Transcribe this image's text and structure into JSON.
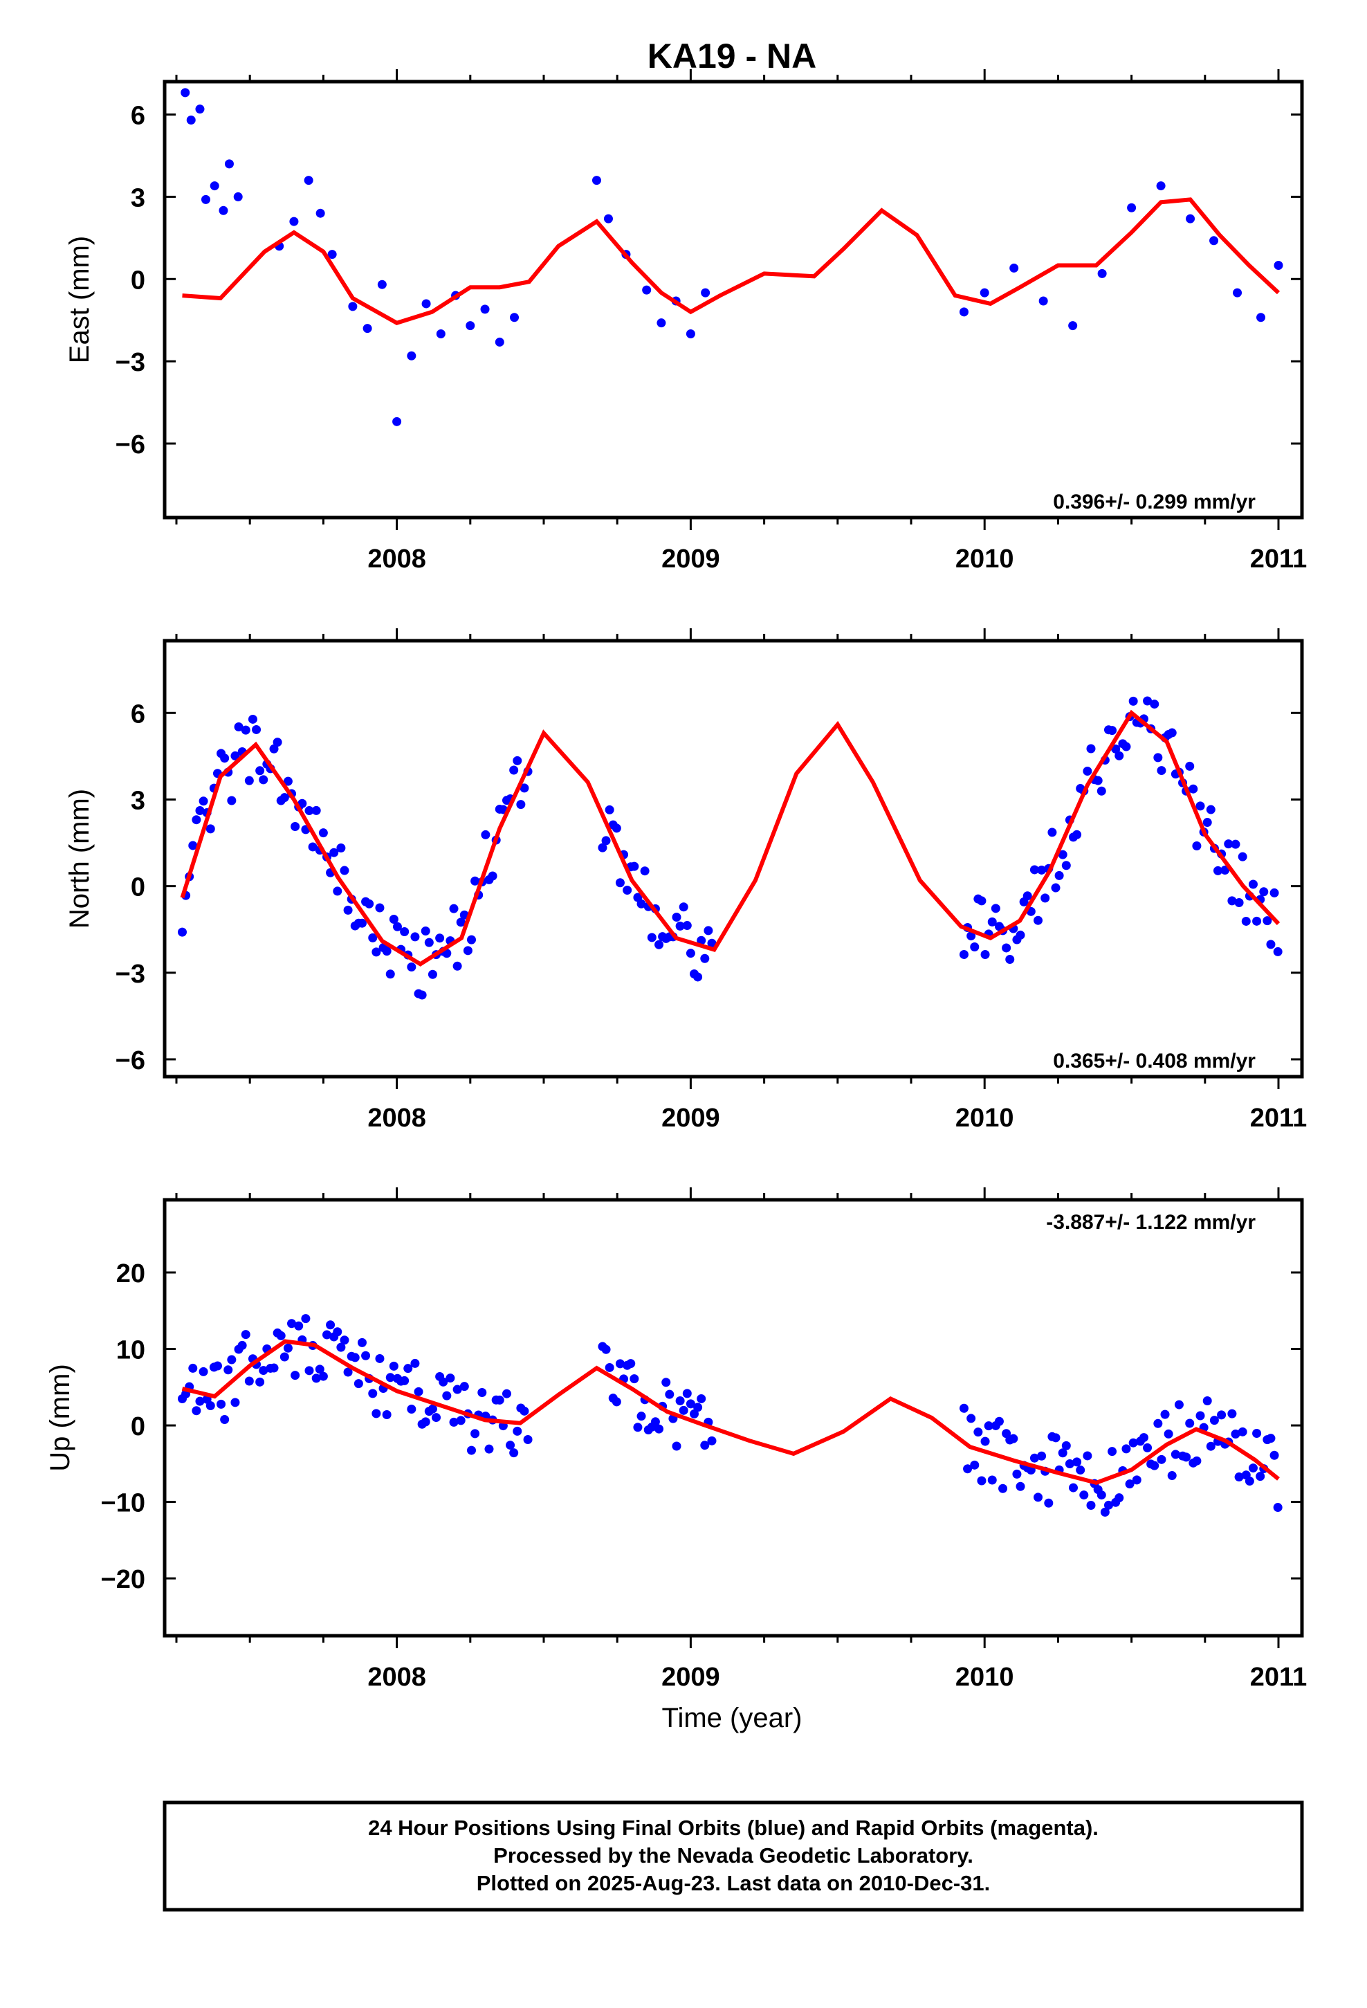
{
  "chart_data": {
    "type": "scatter",
    "title": "KA19 - NA",
    "xlabel": "Time (year)",
    "xlim": [
      2007.21,
      2011.08
    ],
    "x_ticks": [
      2008,
      2009,
      2010,
      2011
    ],
    "x_tick_labels": [
      "2008",
      "2009",
      "2010",
      "2011"
    ],
    "colors": {
      "points": "#0000ff",
      "fit": "#ff0000",
      "axes": "#000000"
    },
    "panels": [
      {
        "name": "east",
        "ylabel": "East (mm)",
        "ylim": [
          -8.7,
          7.2
        ],
        "y_ticks": [
          -6,
          -3,
          0,
          3,
          6
        ],
        "y_tick_labels": [
          "−6",
          "−3",
          "0",
          "3",
          "6"
        ],
        "rate_label": "0.396+/- 0.299 mm/yr",
        "rate_position": "bottom-right",
        "fit_x": [
          2007.27,
          2007.4,
          2007.55,
          2007.65,
          2007.75,
          2007.85,
          2008.0,
          2008.12,
          2008.25,
          2008.35,
          2008.45,
          2008.55,
          2008.68,
          2008.8,
          2008.9,
          2009.0,
          2009.1,
          2009.25,
          2009.42,
          2009.52,
          2009.65,
          2009.77,
          2009.9,
          2010.02,
          2010.12,
          2010.25,
          2010.38,
          2010.5,
          2010.6,
          2010.7,
          2010.8,
          2010.9,
          2011.0
        ],
        "fit_y": [
          -0.6,
          -0.7,
          1.0,
          1.7,
          1.0,
          -0.7,
          -1.6,
          -1.2,
          -0.3,
          -0.3,
          -0.1,
          1.2,
          2.1,
          0.6,
          -0.5,
          -1.2,
          -0.6,
          0.2,
          0.1,
          1.1,
          2.5,
          1.6,
          -0.6,
          -0.9,
          -0.3,
          0.5,
          0.5,
          1.7,
          2.8,
          2.9,
          1.6,
          0.5,
          -0.5
        ],
        "points": [
          {
            "x": 2007.28,
            "y": 6.8
          },
          {
            "x": 2007.3,
            "y": 5.8
          },
          {
            "x": 2007.33,
            "y": 6.2
          },
          {
            "x": 2007.35,
            "y": 2.9
          },
          {
            "x": 2007.38,
            "y": 3.4
          },
          {
            "x": 2007.41,
            "y": 2.5
          },
          {
            "x": 2007.43,
            "y": 4.2
          },
          {
            "x": 2007.46,
            "y": 3.0
          },
          {
            "x": 2007.6,
            "y": 1.2
          },
          {
            "x": 2007.65,
            "y": 2.1
          },
          {
            "x": 2007.7,
            "y": 3.6
          },
          {
            "x": 2007.74,
            "y": 2.4
          },
          {
            "x": 2007.78,
            "y": 0.9
          },
          {
            "x": 2007.85,
            "y": -1.0
          },
          {
            "x": 2007.9,
            "y": -1.8
          },
          {
            "x": 2007.95,
            "y": -0.2
          },
          {
            "x": 2008.0,
            "y": -5.2
          },
          {
            "x": 2008.05,
            "y": -2.8
          },
          {
            "x": 2008.1,
            "y": -0.9
          },
          {
            "x": 2008.15,
            "y": -2.0
          },
          {
            "x": 2008.2,
            "y": -0.6
          },
          {
            "x": 2008.25,
            "y": -1.7
          },
          {
            "x": 2008.3,
            "y": -1.1
          },
          {
            "x": 2008.35,
            "y": -2.3
          },
          {
            "x": 2008.4,
            "y": -1.4
          },
          {
            "x": 2008.68,
            "y": 3.6
          },
          {
            "x": 2008.72,
            "y": 2.2
          },
          {
            "x": 2008.78,
            "y": 0.9
          },
          {
            "x": 2008.85,
            "y": -0.4
          },
          {
            "x": 2008.9,
            "y": -1.6
          },
          {
            "x": 2008.95,
            "y": -0.8
          },
          {
            "x": 2009.0,
            "y": -2.0
          },
          {
            "x": 2009.05,
            "y": -0.5
          },
          {
            "x": 2009.93,
            "y": -1.2
          },
          {
            "x": 2010.0,
            "y": -0.5
          },
          {
            "x": 2010.1,
            "y": 0.4
          },
          {
            "x": 2010.2,
            "y": -0.8
          },
          {
            "x": 2010.3,
            "y": -1.7
          },
          {
            "x": 2010.4,
            "y": 0.2
          },
          {
            "x": 2010.5,
            "y": 2.6
          },
          {
            "x": 2010.6,
            "y": 3.4
          },
          {
            "x": 2010.7,
            "y": 2.2
          },
          {
            "x": 2010.78,
            "y": 1.4
          },
          {
            "x": 2010.86,
            "y": -0.5
          },
          {
            "x": 2010.94,
            "y": -1.4
          },
          {
            "x": 2011.0,
            "y": 0.5
          }
        ]
      },
      {
        "name": "north",
        "ylabel": "North (mm)",
        "ylim": [
          -6.6,
          8.5
        ],
        "y_ticks": [
          -6,
          -3,
          0,
          3,
          6
        ],
        "y_tick_labels": [
          "−6",
          "−3",
          "0",
          "3",
          "6"
        ],
        "rate_label": "0.365+/- 0.408 mm/yr",
        "rate_position": "bottom-right",
        "fit_x": [
          2007.27,
          2007.4,
          2007.52,
          2007.65,
          2007.8,
          2007.95,
          2008.08,
          2008.22,
          2008.35,
          2008.5,
          2008.65,
          2008.8,
          2008.95,
          2009.08,
          2009.22,
          2009.36,
          2009.5,
          2009.62,
          2009.78,
          2009.92,
          2010.02,
          2010.12,
          2010.22,
          2010.35,
          2010.5,
          2010.62,
          2010.75,
          2010.88,
          2011.0
        ],
        "fit_y": [
          -0.4,
          3.8,
          4.9,
          3.0,
          0.3,
          -1.9,
          -2.7,
          -1.8,
          2.0,
          5.3,
          3.6,
          0.2,
          -1.8,
          -2.2,
          0.2,
          3.9,
          5.6,
          3.6,
          0.2,
          -1.4,
          -1.8,
          -1.2,
          0.5,
          3.5,
          6.0,
          5.0,
          1.8,
          0.0,
          -1.3
        ]
      },
      {
        "name": "up",
        "ylabel": "Up (mm)",
        "ylim": [
          -27.5,
          29.5
        ],
        "y_ticks": [
          -20,
          -10,
          0,
          10,
          20
        ],
        "y_tick_labels": [
          "−20",
          "−10",
          "0",
          "10",
          "20"
        ],
        "rate_label": "-3.887+/- 1.122 mm/yr",
        "rate_position": "top-right",
        "fit_x": [
          2007.27,
          2007.38,
          2007.5,
          2007.62,
          2007.72,
          2007.85,
          2008.0,
          2008.15,
          2008.3,
          2008.42,
          2008.55,
          2008.68,
          2008.8,
          2008.92,
          2009.05,
          2009.2,
          2009.35,
          2009.52,
          2009.68,
          2009.82,
          2009.95,
          2010.1,
          2010.25,
          2010.38,
          2010.5,
          2010.62,
          2010.72,
          2010.82,
          2010.92,
          2011.0
        ],
        "fit_y": [
          4.8,
          3.8,
          7.8,
          11.0,
          10.5,
          7.5,
          4.5,
          2.6,
          0.7,
          0.3,
          4.0,
          7.5,
          4.8,
          1.8,
          0.0,
          -2.0,
          -3.7,
          -0.8,
          3.5,
          1.0,
          -2.8,
          -4.6,
          -6.2,
          -7.5,
          -5.8,
          -2.5,
          -0.5,
          -2.0,
          -4.5,
          -7.0
        ]
      }
    ]
  },
  "footer": {
    "line1": "24 Hour Positions Using Final Orbits (blue) and Rapid Orbits (magenta).",
    "line2": "Processed by the Nevada Geodetic Laboratory.",
    "line3": "Plotted on 2025-Aug-23. Last data on 2010-Dec-31."
  }
}
